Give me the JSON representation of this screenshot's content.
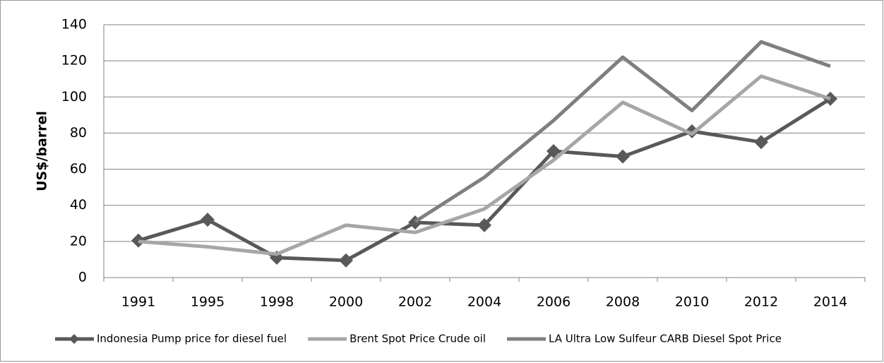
{
  "chart_data": {
    "type": "line",
    "y_label": "US$/barrel",
    "categories": [
      "1991",
      "1995",
      "1998",
      "2000",
      "2002",
      "2004",
      "2006",
      "2008",
      "2010",
      "2012",
      "2014"
    ],
    "series": [
      {
        "name": "Indonesia Pump price for diesel fuel",
        "color": "#595959",
        "marker": "diamond",
        "values": [
          20.5,
          32,
          11,
          9.5,
          30.5,
          29,
          70,
          67,
          81,
          75,
          99
        ]
      },
      {
        "name": "Brent Spot Price Crude oil",
        "color": "#a6a6a6",
        "marker": "none",
        "values": [
          20,
          17,
          13,
          29,
          25,
          38,
          65,
          97,
          79.5,
          111.5,
          99
        ]
      },
      {
        "name": "LA Ultra Low Sulfeur CARB Diesel Spot Price",
        "color": "#7f7f7f",
        "marker": "none",
        "values": [
          null,
          null,
          null,
          null,
          31,
          55.5,
          87,
          122,
          92.5,
          130.5,
          117
        ]
      }
    ],
    "ylim": [
      0,
      140
    ],
    "yticks": [
      0,
      20,
      40,
      60,
      80,
      100,
      120,
      140
    ],
    "grid": true,
    "legend": "bottom"
  }
}
